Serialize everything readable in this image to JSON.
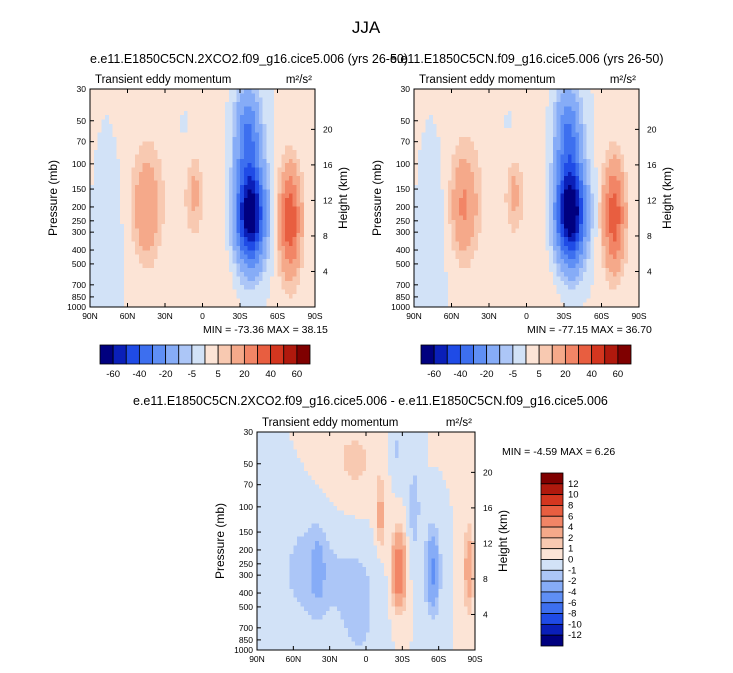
{
  "page_title": "JJA",
  "chart_data": [
    {
      "type": "heatmap",
      "title": "e.e11.E1850C5CN.2XCO2.f09_g16.cice5.006 (yrs 26-50)",
      "left_label": "Transient eddy momentum",
      "right_label": "m²/s²",
      "ylabel": "Pressure (mb)",
      "y2label": "Height (km)",
      "x_ticks": [
        "90N",
        "60N",
        "30N",
        "0",
        "30S",
        "60S",
        "90S"
      ],
      "y_ticks": [
        "30",
        "50",
        "70",
        "100",
        "150",
        "200",
        "250",
        "300",
        "400",
        "500",
        "700",
        "850",
        "1000"
      ],
      "y2_ticks": [
        "20",
        "16",
        "12",
        "8",
        "4"
      ],
      "stats": "MIN = -73.36   MAX = 38.15",
      "features": [
        {
          "lat": -38,
          "p": 225,
          "value": -73.4
        },
        {
          "lat": -70,
          "p": 250,
          "value": 38.2
        },
        {
          "lat": 45,
          "p": 210,
          "value": 18
        },
        {
          "lat": 7,
          "p": 160,
          "value": 10
        }
      ]
    },
    {
      "type": "heatmap",
      "title": "e.e11.E1850C5CN.f09_g16.cice5.006 (yrs 26-50)",
      "left_label": "Transient eddy momentum",
      "right_label": "m²/s²",
      "ylabel": "Pressure (mb)",
      "y2label": "Height (km)",
      "x_ticks": [
        "90N",
        "60N",
        "30N",
        "0",
        "30S",
        "60S",
        "90S"
      ],
      "y_ticks": [
        "30",
        "50",
        "70",
        "100",
        "150",
        "200",
        "250",
        "300",
        "400",
        "500",
        "700",
        "850",
        "1000"
      ],
      "y2_ticks": [
        "20",
        "16",
        "12",
        "8",
        "4"
      ],
      "stats": "MIN = -77.15   MAX = 36.70",
      "features": [
        {
          "lat": -35,
          "p": 220,
          "value": -77.2
        },
        {
          "lat": -70,
          "p": 230,
          "value": 36.7
        },
        {
          "lat": 50,
          "p": 200,
          "value": 20
        },
        {
          "lat": 10,
          "p": 160,
          "value": 10
        }
      ]
    },
    {
      "type": "heatmap",
      "title": "e.e11.E1850C5CN.2XCO2.f09_g16.cice5.006 - e.e11.E1850C5CN.f09_g16.cice5.006",
      "left_label": "Transient eddy momentum",
      "right_label": "m²/s²",
      "ylabel": "Pressure (mb)",
      "y2label": "Height (km)",
      "x_ticks": [
        "90N",
        "60N",
        "30N",
        "0",
        "30S",
        "60S",
        "90S"
      ],
      "y_ticks": [
        "30",
        "50",
        "70",
        "100",
        "150",
        "200",
        "250",
        "300",
        "400",
        "500",
        "700",
        "850",
        "1000"
      ],
      "y2_ticks": [
        "20",
        "16",
        "12",
        "8",
        "4"
      ],
      "stats": "MIN = -4.59   MAX =  6.26",
      "features": [
        {
          "lat": -55,
          "p": 280,
          "value": -4.6
        },
        {
          "lat": -27,
          "p": 280,
          "value": 6.3
        },
        {
          "lat": 40,
          "p": 280,
          "value": -2
        },
        {
          "lat": -85,
          "p": 270,
          "value": 3
        }
      ]
    }
  ],
  "colorbar_top": {
    "labels": [
      "-60",
      "-40",
      "-20",
      "-5",
      "5",
      "20",
      "40",
      "60"
    ],
    "colors": [
      "#00007f",
      "#0a1fb8",
      "#1f4be6",
      "#3d6fef",
      "#5f8ff5",
      "#86acf7",
      "#acc6f7",
      "#d2e2f7",
      "#fce4d6",
      "#f8c9b1",
      "#f5a98a",
      "#f28566",
      "#e85e40",
      "#d4361f",
      "#b0190d",
      "#7f0000"
    ]
  },
  "colorbar_bottom": {
    "labels": [
      "12",
      "10",
      "8",
      "6",
      "4",
      "2",
      "1",
      "0",
      "-1",
      "-2",
      "-4",
      "-6",
      "-8",
      "-10",
      "-12"
    ],
    "colors": [
      "#7f0000",
      "#b0190d",
      "#d4361f",
      "#e85e40",
      "#f28566",
      "#f5a98a",
      "#f8c9b1",
      "#fce4d6",
      "#d2e2f7",
      "#acc6f7",
      "#86acf7",
      "#5f8ff5",
      "#3d6fef",
      "#1f4be6",
      "#0a1fb8",
      "#00007f"
    ]
  }
}
